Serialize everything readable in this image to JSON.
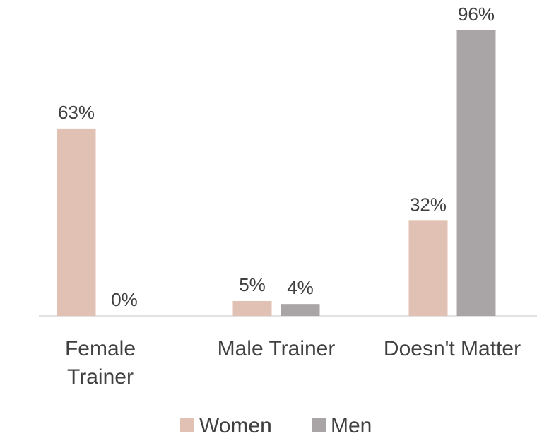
{
  "chart_data": {
    "type": "bar",
    "categories": [
      "Female Trainer",
      "Male Trainer",
      "Doesn't Matter"
    ],
    "series": [
      {
        "name": "Women",
        "color": "#e0c1b3",
        "values": [
          63,
          5,
          32
        ],
        "value_labels": [
          "63%",
          "5%",
          "32%"
        ]
      },
      {
        "name": "Men",
        "color": "#a9a5a6",
        "values": [
          0,
          4,
          96
        ],
        "value_labels": [
          "0%",
          "4%",
          "96%"
        ]
      }
    ],
    "legend": "bottom"
  }
}
